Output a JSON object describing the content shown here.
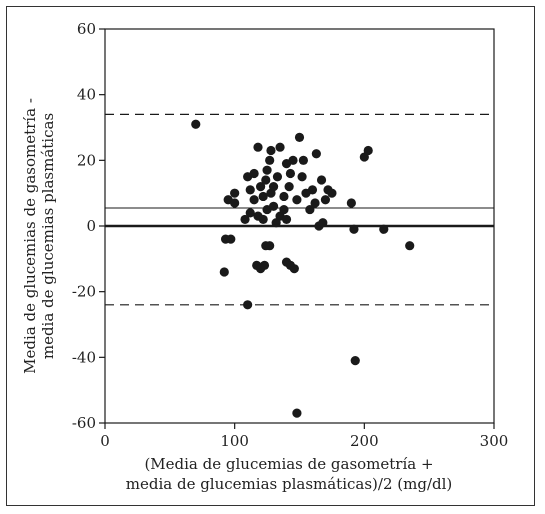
{
  "chart_data": {
    "type": "scatter",
    "title": "",
    "xlabel_lines": [
      "(Media de glucemias de gasometría +",
      "media de glucemias plasmáticas)/2 (mg/dl)"
    ],
    "ylabel_lines": [
      "Media de glucemias de gasometría -",
      "media de glucemias plasmáticas"
    ],
    "xlim": [
      0,
      300
    ],
    "ylim": [
      -60,
      60
    ],
    "xticks": [
      0,
      100,
      200,
      300
    ],
    "yticks": [
      -60,
      -40,
      -20,
      0,
      20,
      40,
      60
    ],
    "ytick_labels": [
      "-60",
      "-40",
      "-20",
      "0",
      "20",
      "40",
      "60"
    ],
    "grid": false,
    "reference_lines": [
      {
        "name": "zero",
        "y": 0,
        "style": "solid-thick"
      },
      {
        "name": "mean-difference",
        "y": 5.5,
        "style": "solid-thin"
      },
      {
        "name": "upper-limit",
        "y": 34,
        "style": "dashed"
      },
      {
        "name": "lower-limit",
        "y": -24,
        "style": "dashed"
      }
    ],
    "series": [
      {
        "points": [
          [
            70,
            31
          ],
          [
            95,
            8
          ],
          [
            100,
            10
          ],
          [
            100,
            7
          ],
          [
            108,
            2
          ],
          [
            110,
            15
          ],
          [
            112,
            4
          ],
          [
            112,
            11
          ],
          [
            115,
            8
          ],
          [
            115,
            16
          ],
          [
            118,
            3
          ],
          [
            118,
            24
          ],
          [
            120,
            12
          ],
          [
            122,
            2
          ],
          [
            122,
            9
          ],
          [
            124,
            14
          ],
          [
            125,
            5
          ],
          [
            125,
            17
          ],
          [
            127,
            20
          ],
          [
            128,
            10
          ],
          [
            128,
            23
          ],
          [
            130,
            6
          ],
          [
            130,
            12
          ],
          [
            132,
            1
          ],
          [
            133,
            15
          ],
          [
            135,
            3
          ],
          [
            135,
            24
          ],
          [
            138,
            5
          ],
          [
            138,
            9
          ],
          [
            140,
            19
          ],
          [
            140,
            2
          ],
          [
            142,
            12
          ],
          [
            143,
            16
          ],
          [
            145,
            20
          ],
          [
            148,
            8
          ],
          [
            150,
            27
          ],
          [
            152,
            15
          ],
          [
            153,
            20
          ],
          [
            155,
            10
          ],
          [
            158,
            5
          ],
          [
            160,
            11
          ],
          [
            162,
            7
          ],
          [
            163,
            22
          ],
          [
            165,
            0
          ],
          [
            167,
            14
          ],
          [
            168,
            1
          ],
          [
            170,
            8
          ],
          [
            172,
            11
          ],
          [
            175,
            10
          ],
          [
            190,
            7
          ],
          [
            192,
            -1
          ],
          [
            200,
            21
          ],
          [
            203,
            23
          ],
          [
            215,
            -1
          ],
          [
            235,
            -6
          ],
          [
            92,
            -14
          ],
          [
            93,
            -4
          ],
          [
            97,
            -4
          ],
          [
            110,
            -24
          ],
          [
            117,
            -12
          ],
          [
            120,
            -13
          ],
          [
            123,
            -12
          ],
          [
            124,
            -6
          ],
          [
            127,
            -6
          ],
          [
            140,
            -11
          ],
          [
            143,
            -12
          ],
          [
            146,
            -13
          ],
          [
            193,
            -41
          ],
          [
            148,
            -57
          ]
        ]
      }
    ],
    "colors": {
      "points": "#1a1a1a",
      "lines": "#1a1a1a"
    }
  }
}
